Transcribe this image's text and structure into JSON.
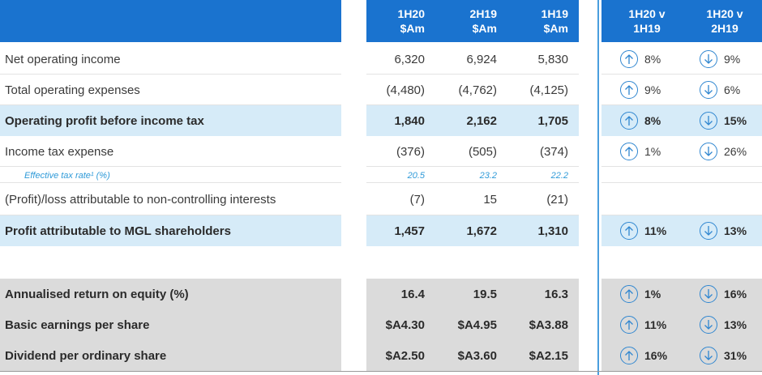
{
  "header": {
    "col1": "1H20\n$Am",
    "col2": "2H19\n$Am",
    "col3": "1H19\n$Am",
    "chg1": "1H20 v\n1H19",
    "chg2": "1H20 v\n2H19"
  },
  "rows": [
    {
      "label": "Net operating income",
      "v1": "6,320",
      "v2": "6,924",
      "v3": "5,830",
      "c1_dir": "up",
      "c1": "8%",
      "c2_dir": "down",
      "c2": "9%"
    },
    {
      "label": "Total operating expenses",
      "v1": "(4,480)",
      "v2": "(4,762)",
      "v3": "(4,125)",
      "c1_dir": "up",
      "c1": "9%",
      "c2_dir": "down",
      "c2": "6%"
    },
    {
      "label": "Operating profit before income tax",
      "v1": "1,840",
      "v2": "2,162",
      "v3": "1,705",
      "c1_dir": "up",
      "c1": "8%",
      "c2_dir": "down",
      "c2": "15%"
    },
    {
      "label": "Income tax expense",
      "v1": "(376)",
      "v2": "(505)",
      "v3": "(374)",
      "c1_dir": "up",
      "c1": "1%",
      "c2_dir": "down",
      "c2": "26%"
    },
    {
      "label": "Effective tax rate¹ (%)",
      "v1": "20.5",
      "v2": "23.2",
      "v3": "22.2"
    },
    {
      "label": "(Profit)/loss attributable to non-controlling interests",
      "v1": "(7)",
      "v2": "15",
      "v3": "(21)"
    },
    {
      "label": "Profit attributable to MGL shareholders",
      "v1": "1,457",
      "v2": "1,672",
      "v3": "1,310",
      "c1_dir": "up",
      "c1": "11%",
      "c2_dir": "down",
      "c2": "13%"
    },
    {
      "label": "Annualised return on equity (%)",
      "v1": "16.4",
      "v2": "19.5",
      "v3": "16.3",
      "c1_dir": "up",
      "c1": "1%",
      "c2_dir": "down",
      "c2": "16%"
    },
    {
      "label": "Basic earnings per share",
      "v1": "$A4.30",
      "v2": "$A4.95",
      "v3": "$A3.88",
      "c1_dir": "up",
      "c1": "11%",
      "c2_dir": "down",
      "c2": "13%"
    },
    {
      "label": "Dividend per ordinary share",
      "v1": "$A2.50",
      "v2": "$A3.60",
      "v3": "$A2.15",
      "c1_dir": "up",
      "c1": "16%",
      "c2_dir": "down",
      "c2": "31%"
    }
  ],
  "colors": {
    "header": "#1a73cf",
    "highlight": "#d6ebf8",
    "grey": "#dbdbdb",
    "accent": "#2f9ad8"
  },
  "icons": {
    "up": "up-arrow-circle-icon",
    "down": "down-arrow-circle-icon"
  }
}
